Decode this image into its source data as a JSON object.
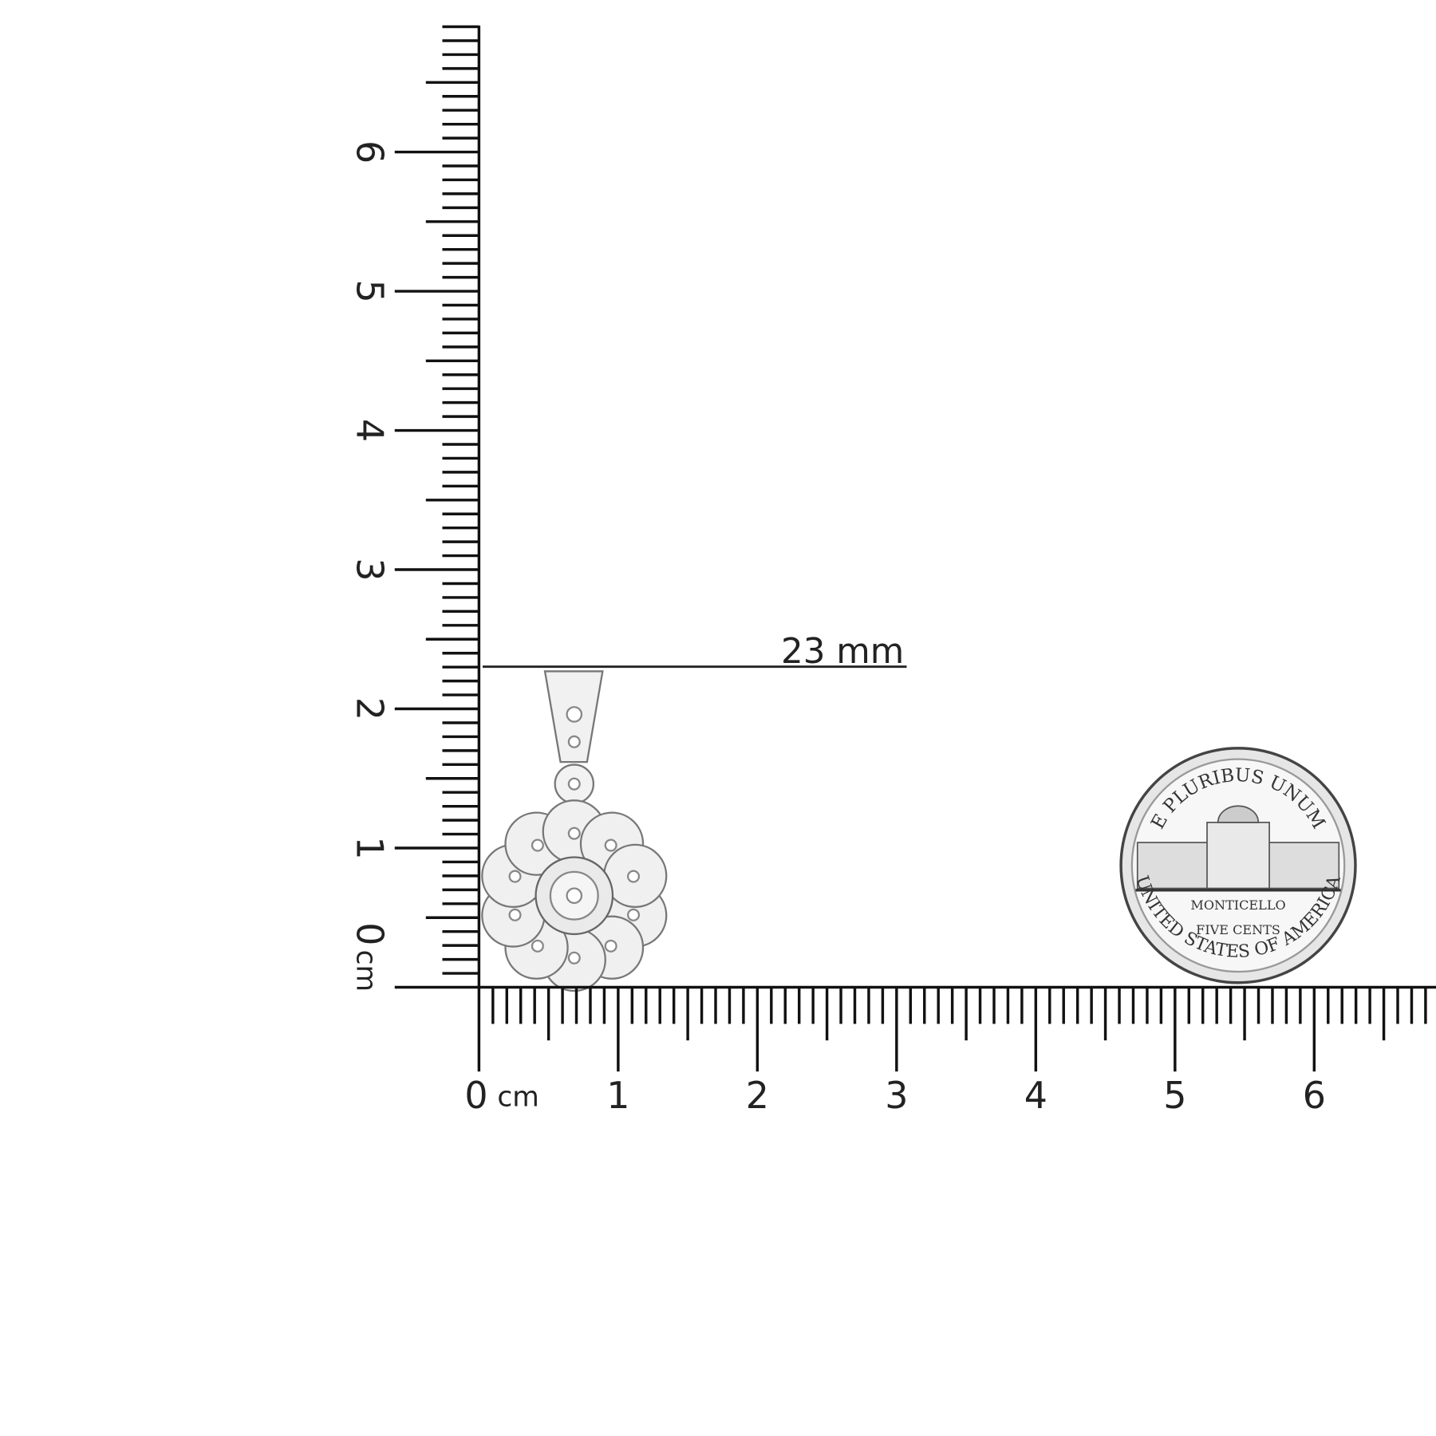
{
  "ruler": {
    "labels": [
      "0",
      "1",
      "2",
      "3",
      "4",
      "5",
      "6"
    ],
    "unit": "cm"
  },
  "measurement": {
    "label": "23 mm"
  },
  "coin": {
    "top": "E PLURIBUS UNUM",
    "building": "MONTICELLO",
    "denomination": "FIVE CENTS",
    "bottom": "UNITED STATES OF AMERICA"
  }
}
